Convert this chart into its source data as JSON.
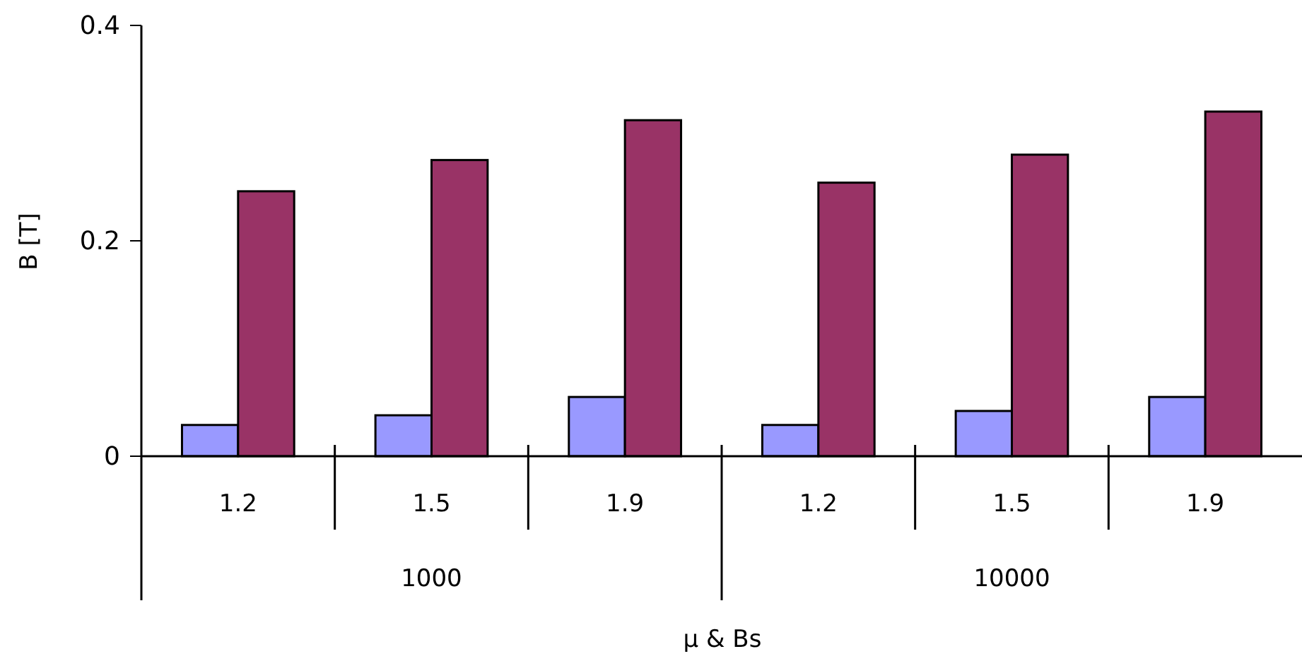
{
  "chart_data": {
    "type": "bar",
    "xlabel": "μ & Bs",
    "ylabel": "B [T]",
    "categories": [
      "1.2",
      "1.5",
      "1.9",
      "1.2",
      "1.5",
      "1.9"
    ],
    "series": [
      {
        "color": "#9999ff",
        "values": [
          0.029,
          0.038,
          0.055,
          0.029,
          0.042,
          0.055
        ]
      },
      {
        "color": "#993366",
        "values": [
          0.246,
          0.275,
          0.312,
          0.254,
          0.28,
          0.32
        ]
      }
    ],
    "annotations": [
      "1000",
      "10000"
    ],
    "ylim": [
      0,
      0.4
    ],
    "yticks": [
      0,
      0.2,
      0.4
    ],
    "grid": false
  }
}
